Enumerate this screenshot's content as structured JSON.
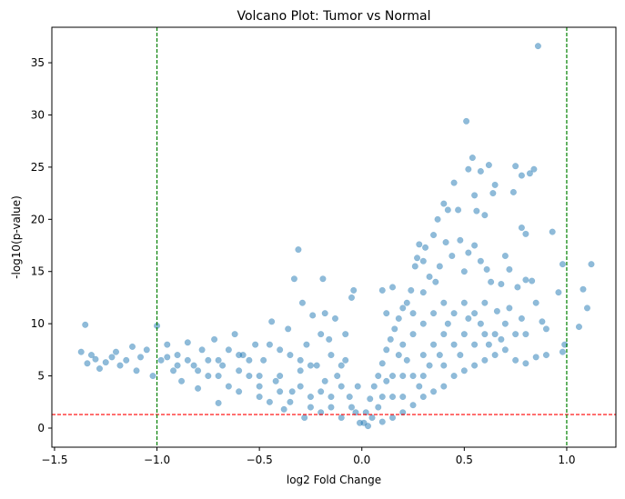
{
  "chart_data": {
    "type": "scatter",
    "title": "Volcano Plot: Tumor vs Normal",
    "xlabel": "log2 Fold Change",
    "ylabel": "-log10(p-value)",
    "xlim": [
      -1.513,
      1.24
    ],
    "ylim": [
      -1.83,
      38.4
    ],
    "xticks": [
      -1.5,
      -1.0,
      -0.5,
      0.0,
      0.5,
      1.0
    ],
    "xtick_labels": [
      "−1.5",
      "−1.0",
      "−0.5",
      "0.0",
      "0.5",
      "1.0"
    ],
    "yticks": [
      0,
      5,
      10,
      15,
      20,
      25,
      30,
      35
    ],
    "ytick_labels": [
      "0",
      "5",
      "10",
      "15",
      "20",
      "25",
      "30",
      "35"
    ],
    "grid": false,
    "point_color": "#1f77b4",
    "point_alpha": 0.5,
    "thresholds": {
      "pvalue_line": {
        "y": 1.301,
        "color": "#ff0000",
        "style": "dashed"
      },
      "fold_change_lines": {
        "x": [
          -1.0,
          1.0
        ],
        "color": "#008000",
        "style": "dashed"
      }
    },
    "series": [
      {
        "points": [
          [
            0.86,
            36.6
          ],
          [
            0.51,
            29.4
          ],
          [
            0.54,
            25.9
          ],
          [
            0.52,
            24.8
          ],
          [
            0.62,
            25.2
          ],
          [
            0.58,
            24.6
          ],
          [
            0.75,
            25.1
          ],
          [
            0.84,
            24.8
          ],
          [
            0.82,
            24.4
          ],
          [
            0.78,
            24.2
          ],
          [
            0.45,
            23.5
          ],
          [
            0.65,
            23.3
          ],
          [
            0.64,
            22.5
          ],
          [
            0.55,
            22.3
          ],
          [
            0.74,
            22.6
          ],
          [
            0.56,
            20.8
          ],
          [
            0.4,
            21.5
          ],
          [
            0.42,
            20.9
          ],
          [
            0.47,
            20.9
          ],
          [
            0.6,
            20.4
          ],
          [
            0.37,
            20.0
          ],
          [
            0.35,
            18.5
          ],
          [
            0.93,
            18.8
          ],
          [
            0.78,
            19.2
          ],
          [
            0.8,
            18.6
          ],
          [
            0.31,
            17.3
          ],
          [
            0.28,
            17.6
          ],
          [
            0.27,
            16.3
          ],
          [
            0.26,
            15.5
          ],
          [
            0.3,
            16.0
          ],
          [
            1.12,
            15.7
          ],
          [
            0.98,
            15.7
          ],
          [
            0.96,
            13.0
          ],
          [
            1.08,
            13.3
          ],
          [
            1.1,
            11.5
          ],
          [
            1.06,
            9.7
          ],
          [
            0.99,
            8.0
          ],
          [
            0.98,
            7.3
          ],
          [
            0.9,
            9.5
          ],
          [
            0.88,
            10.2
          ],
          [
            0.85,
            12.0
          ],
          [
            0.83,
            14.1
          ],
          [
            0.8,
            14.2
          ],
          [
            0.76,
            13.5
          ],
          [
            0.72,
            15.2
          ],
          [
            0.7,
            16.5
          ],
          [
            0.68,
            13.8
          ],
          [
            0.66,
            11.2
          ],
          [
            0.63,
            14.0
          ],
          [
            0.61,
            15.2
          ],
          [
            0.58,
            16.0
          ],
          [
            0.55,
            17.5
          ],
          [
            0.52,
            16.8
          ],
          [
            0.5,
            15.0
          ],
          [
            0.48,
            18.0
          ],
          [
            0.44,
            16.5
          ],
          [
            0.41,
            17.8
          ],
          [
            0.38,
            15.5
          ],
          [
            0.36,
            14.0
          ],
          [
            0.33,
            14.5
          ],
          [
            0.3,
            13.0
          ],
          [
            0.24,
            13.2
          ],
          [
            0.22,
            12.0
          ],
          [
            0.2,
            11.5
          ],
          [
            0.18,
            10.5
          ],
          [
            0.16,
            9.5
          ],
          [
            0.14,
            8.5
          ],
          [
            0.12,
            7.5
          ],
          [
            0.1,
            6.2
          ],
          [
            0.08,
            5.0
          ],
          [
            0.06,
            4.0
          ],
          [
            0.04,
            2.8
          ],
          [
            0.02,
            1.5
          ],
          [
            0.01,
            0.5
          ],
          [
            0.03,
            0.2
          ],
          [
            0.1,
            0.6
          ],
          [
            0.15,
            1.0
          ],
          [
            0.2,
            1.5
          ],
          [
            0.25,
            2.2
          ],
          [
            0.3,
            3.0
          ],
          [
            0.35,
            3.5
          ],
          [
            0.4,
            4.0
          ],
          [
            0.45,
            5.0
          ],
          [
            0.5,
            5.5
          ],
          [
            0.55,
            6.0
          ],
          [
            0.6,
            6.5
          ],
          [
            0.65,
            7.0
          ],
          [
            0.7,
            7.5
          ],
          [
            0.75,
            6.5
          ],
          [
            0.8,
            6.2
          ],
          [
            0.85,
            6.8
          ],
          [
            0.9,
            7.0
          ],
          [
            0.2,
            8.0
          ],
          [
            0.25,
            9.0
          ],
          [
            0.25,
            11.0
          ],
          [
            0.3,
            7.0
          ],
          [
            0.3,
            10.0
          ],
          [
            0.35,
            8.0
          ],
          [
            0.35,
            11.0
          ],
          [
            0.4,
            6.0
          ],
          [
            0.4,
            9.0
          ],
          [
            0.4,
            12.0
          ],
          [
            0.45,
            8.0
          ],
          [
            0.45,
            11.0
          ],
          [
            0.5,
            9.0
          ],
          [
            0.5,
            12.0
          ],
          [
            0.55,
            8.0
          ],
          [
            0.55,
            11.0
          ],
          [
            0.6,
            9.0
          ],
          [
            0.6,
            12.0
          ],
          [
            0.65,
            9.0
          ],
          [
            0.7,
            10.0
          ],
          [
            0.75,
            9.0
          ],
          [
            0.8,
            9.0
          ],
          [
            0.15,
            5.0
          ],
          [
            0.2,
            5.0
          ],
          [
            0.25,
            5.0
          ],
          [
            0.1,
            3.0
          ],
          [
            0.15,
            3.0
          ],
          [
            0.2,
            3.0
          ],
          [
            0.3,
            5.0
          ],
          [
            0.12,
            11.0
          ],
          [
            0.1,
            13.2
          ],
          [
            0.15,
            13.5
          ],
          [
            0.18,
            7.0
          ],
          [
            0.22,
            6.5
          ],
          [
            0.28,
            4.0
          ],
          [
            0.33,
            6.0
          ],
          [
            0.38,
            7.0
          ],
          [
            0.42,
            10.0
          ],
          [
            0.48,
            7.0
          ],
          [
            0.52,
            10.5
          ],
          [
            0.58,
            10.0
          ],
          [
            0.62,
            8.0
          ],
          [
            0.68,
            8.5
          ],
          [
            0.72,
            11.5
          ],
          [
            0.78,
            10.5
          ],
          [
            0.05,
            1.0
          ],
          [
            0.08,
            2.0
          ],
          [
            0.12,
            4.5
          ],
          [
            -1.35,
            9.9
          ],
          [
            -1.37,
            7.3
          ],
          [
            -1.34,
            6.2
          ],
          [
            -1.32,
            7.0
          ],
          [
            -1.3,
            6.6
          ],
          [
            -1.28,
            5.7
          ],
          [
            -1.25,
            6.3
          ],
          [
            -1.22,
            6.8
          ],
          [
            -1.2,
            7.3
          ],
          [
            -1.18,
            6.0
          ],
          [
            -1.15,
            6.5
          ],
          [
            -1.12,
            7.8
          ],
          [
            -1.1,
            5.5
          ],
          [
            -1.08,
            6.8
          ],
          [
            -1.05,
            7.5
          ],
          [
            -1.02,
            5.0
          ],
          [
            -1.0,
            9.8
          ],
          [
            -0.98,
            6.5
          ],
          [
            -0.95,
            8.0
          ],
          [
            -0.92,
            5.5
          ],
          [
            -0.9,
            7.0
          ],
          [
            -0.88,
            4.5
          ],
          [
            -0.85,
            8.2
          ],
          [
            -0.82,
            6.0
          ],
          [
            -0.8,
            3.8
          ],
          [
            -0.78,
            7.5
          ],
          [
            -0.75,
            5.0
          ],
          [
            -0.72,
            8.5
          ],
          [
            -0.7,
            2.4
          ],
          [
            -0.68,
            6.0
          ],
          [
            -0.65,
            4.0
          ],
          [
            -0.62,
            9.0
          ],
          [
            -0.6,
            3.5
          ],
          [
            -0.58,
            7.0
          ],
          [
            -0.55,
            5.0
          ],
          [
            -0.52,
            8.0
          ],
          [
            -0.5,
            3.0
          ],
          [
            -0.48,
            6.5
          ],
          [
            -0.45,
            2.5
          ],
          [
            -0.44,
            10.2
          ],
          [
            -0.42,
            4.5
          ],
          [
            -0.4,
            7.5
          ],
          [
            -0.38,
            1.8
          ],
          [
            -0.36,
            9.5
          ],
          [
            -0.34,
            3.5
          ],
          [
            -0.33,
            14.3
          ],
          [
            -0.31,
            17.1
          ],
          [
            -0.3,
            5.5
          ],
          [
            -0.29,
            12.0
          ],
          [
            -0.28,
            1.0
          ],
          [
            -0.27,
            8.0
          ],
          [
            -0.25,
            3.0
          ],
          [
            -0.24,
            10.8
          ],
          [
            -0.22,
            6.0
          ],
          [
            -0.2,
            1.5
          ],
          [
            -0.19,
            14.3
          ],
          [
            -0.18,
            4.5
          ],
          [
            -0.16,
            8.5
          ],
          [
            -0.15,
            2.0
          ],
          [
            -0.13,
            10.5
          ],
          [
            -0.12,
            5.0
          ],
          [
            -0.1,
            1.0
          ],
          [
            -0.08,
            6.5
          ],
          [
            -0.06,
            3.0
          ],
          [
            -0.05,
            12.5
          ],
          [
            -0.04,
            13.2
          ],
          [
            -0.03,
            1.5
          ],
          [
            -0.02,
            4.0
          ],
          [
            -0.01,
            0.5
          ],
          [
            -0.15,
            7.0
          ],
          [
            -0.2,
            9.0
          ],
          [
            -0.25,
            6.0
          ],
          [
            -0.35,
            7.0
          ],
          [
            -0.45,
            8.0
          ],
          [
            -0.55,
            6.5
          ],
          [
            -0.65,
            7.5
          ],
          [
            -0.75,
            6.5
          ],
          [
            -0.85,
            6.5
          ],
          [
            -0.95,
            6.8
          ],
          [
            -0.1,
            4.0
          ],
          [
            -0.2,
            3.5
          ],
          [
            -0.3,
            4.0
          ],
          [
            -0.4,
            5.0
          ],
          [
            -0.5,
            5.0
          ],
          [
            -0.6,
            5.5
          ],
          [
            -0.7,
            5.0
          ],
          [
            -0.8,
            5.5
          ],
          [
            -0.9,
            6.0
          ],
          [
            -0.05,
            2.0
          ],
          [
            -0.15,
            3.0
          ],
          [
            -0.25,
            2.0
          ],
          [
            -0.35,
            2.5
          ],
          [
            -0.1,
            6.0
          ],
          [
            -0.3,
            6.5
          ],
          [
            -0.4,
            3.5
          ],
          [
            -0.5,
            4.0
          ],
          [
            -0.6,
            7.0
          ],
          [
            -0.7,
            6.5
          ],
          [
            -0.08,
            9.0
          ],
          [
            -0.18,
            11.0
          ]
        ]
      }
    ]
  }
}
